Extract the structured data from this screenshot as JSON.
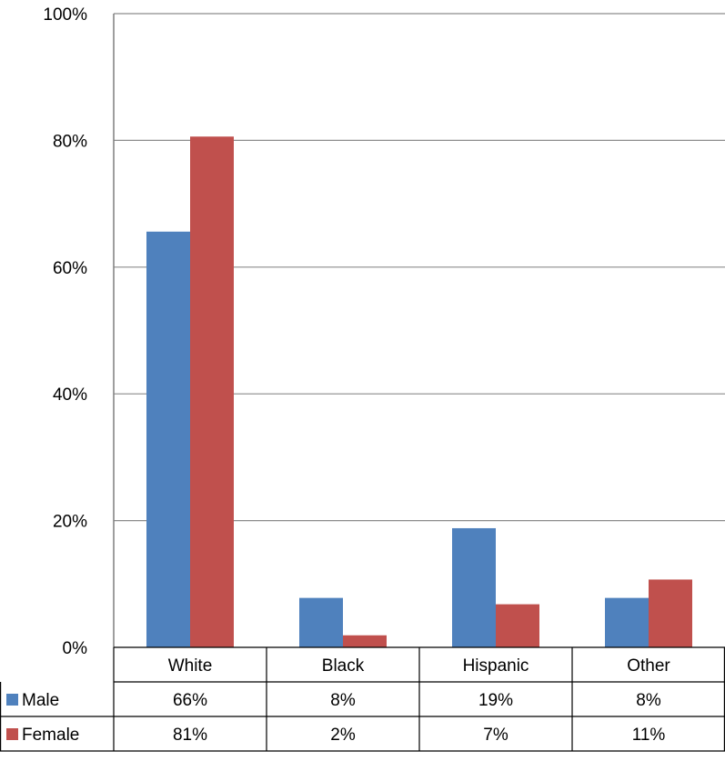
{
  "chart_data": {
    "type": "bar",
    "categories": [
      "White",
      "Black",
      "Hispanic",
      "Other"
    ],
    "series": [
      {
        "name": "Male",
        "values": [
          65.6,
          7.8,
          18.8,
          7.8
        ],
        "labels": [
          "66%",
          "8%",
          "19%",
          "8%"
        ],
        "color": "#4F81BD"
      },
      {
        "name": "Female",
        "values": [
          80.6,
          1.9,
          6.8,
          10.7
        ],
        "labels": [
          "81%",
          "2%",
          "7%",
          "11%"
        ],
        "color": "#C0504D"
      }
    ],
    "ylim": [
      0,
      100
    ],
    "yticks": [
      0,
      20,
      40,
      60,
      80,
      100
    ],
    "ytick_labels": [
      "0%",
      "20%",
      "40%",
      "60%",
      "80%",
      "100%"
    ],
    "grid": true,
    "legend": "data-table"
  }
}
